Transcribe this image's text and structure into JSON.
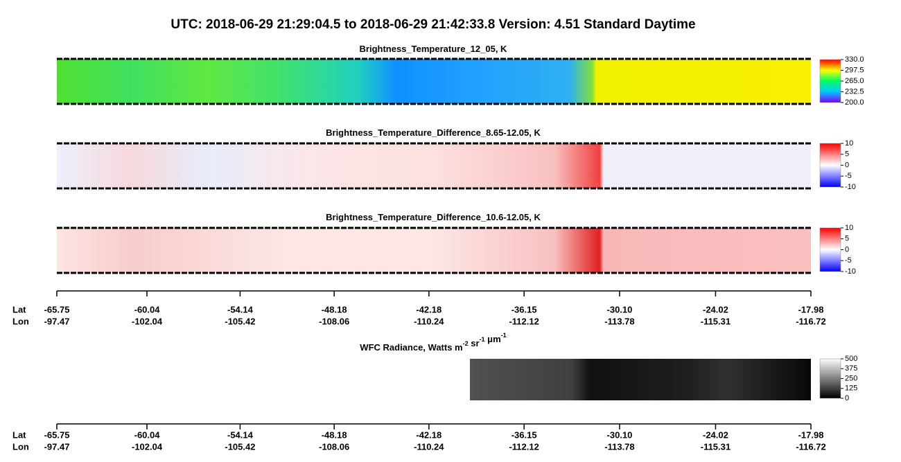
{
  "title": "UTC:  2018-06-29   21:29:04.5  to  2018-06-29   21:42:33.8    Version: 4.51  Standard Daytime",
  "chart_data": [
    {
      "type": "heatmap",
      "title": [
        {
          "text": "Brightness_Temperature_12_05, K"
        }
      ],
      "clim": [
        200,
        330
      ],
      "colormap": [
        "#8000ff",
        "#00c8ff",
        "#00ff60",
        "#ffff00",
        "#ff0000"
      ],
      "cticks": [
        {
          "value": 330,
          "label": "330.0"
        },
        297.5,
        {
          "value": 265,
          "label": "265.0"
        },
        232.5,
        {
          "value": 200,
          "label": "200.0"
        }
      ]
    },
    {
      "type": "heatmap",
      "title": [
        {
          "text": "Brightness_Temperature_Difference_8.65-12.05, K"
        }
      ],
      "clim": [
        -10,
        10
      ],
      "colormap": [
        "#0000ff",
        "#ffffff",
        "#ff0000"
      ],
      "cticks": [
        10,
        5,
        0,
        -5,
        -10
      ]
    },
    {
      "type": "heatmap",
      "title": [
        {
          "text": "Brightness_Temperature_Difference_10.6-12.05, K"
        }
      ],
      "clim": [
        -10,
        10
      ],
      "colormap": [
        "#0000ff",
        "#ffffff",
        "#ff0000"
      ],
      "cticks": [
        10,
        5,
        0,
        -5,
        -10
      ]
    },
    {
      "type": "heatmap",
      "title": [
        {
          "text": "WFC Radiance, Watts m",
          "sup": "-2"
        },
        {
          "text": " sr",
          "sup": "-1"
        },
        {
          "text": " μm",
          "sup": "-1"
        }
      ],
      "clim": [
        0,
        500
      ],
      "colormap": [
        "#000000",
        "#ffffff"
      ],
      "cticks": [
        500,
        375,
        250,
        125,
        0
      ]
    }
  ],
  "geo_axis": {
    "lat_label": "Lat",
    "lon_label": "Lon",
    "xlim": [
      -65.75,
      -17.98
    ],
    "lat": [
      -65.75,
      -60.04,
      -54.14,
      -48.18,
      -42.18,
      -36.15,
      {
        "value": -30.1,
        "label": "-30.10"
      },
      -24.02,
      -17.98
    ],
    "lon": [
      -97.47,
      -102.04,
      -105.42,
      -108.06,
      -110.24,
      -112.12,
      -113.78,
      -115.31,
      -116.72
    ]
  }
}
